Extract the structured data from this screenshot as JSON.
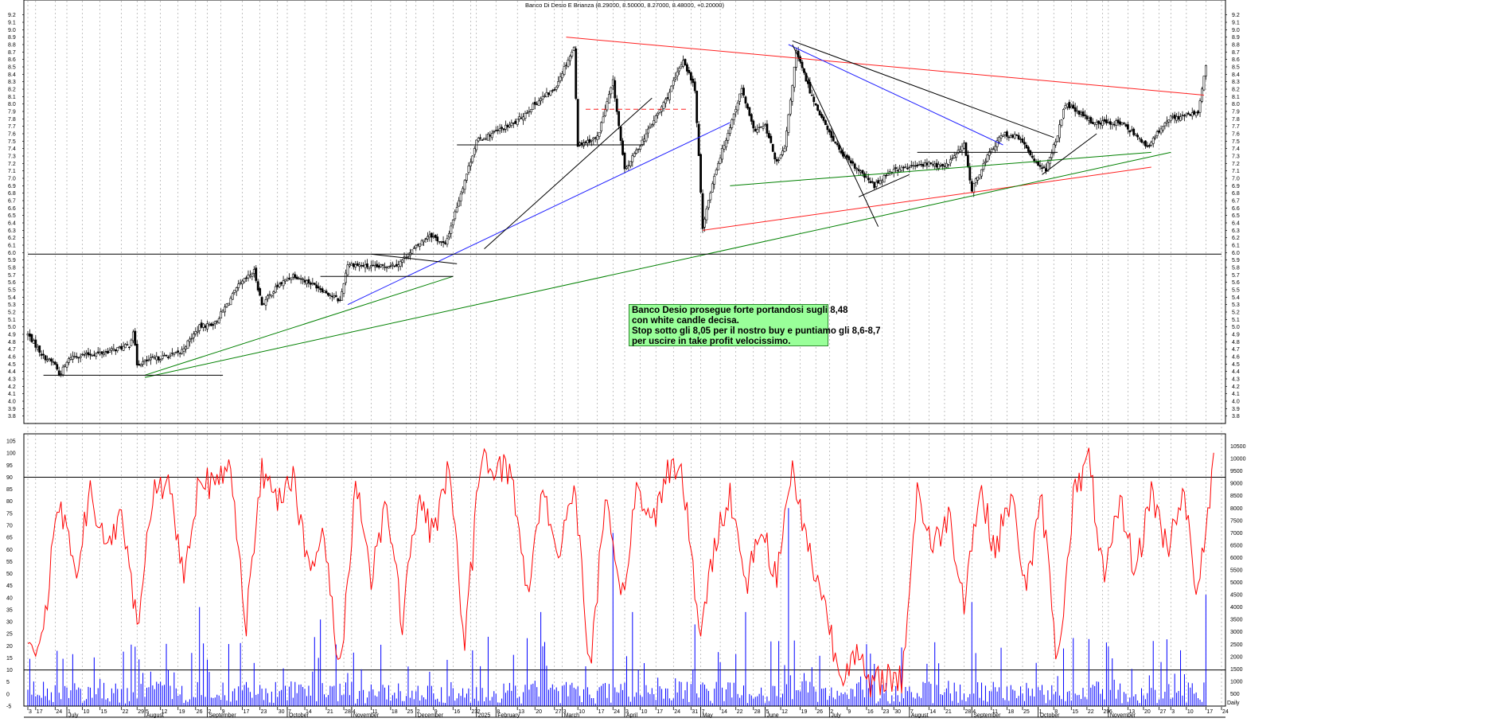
{
  "chart_data": {
    "type": "candlestick",
    "title": "Banco Di Desio E Brianza (8.29000, 8.50000, 8.27000, 8.48000, +0.20000)",
    "price_axis": {
      "ylim": [
        3.7,
        9.25
      ],
      "ticks": [
        "3.8",
        "3.9",
        "4.0",
        "4.1",
        "4.2",
        "4.3",
        "4.4",
        "4.5",
        "4.6",
        "4.7",
        "4.8",
        "4.9",
        "5.0",
        "5.1",
        "5.2",
        "5.3",
        "5.4",
        "5.5",
        "5.6",
        "5.7",
        "5.8",
        "5.9",
        "6.0",
        "6.1",
        "6.2",
        "6.3",
        "6.4",
        "6.5",
        "6.6",
        "6.7",
        "6.8",
        "6.9",
        "7.0",
        "7.1",
        "7.2",
        "7.3",
        "7.4",
        "7.5",
        "7.6",
        "7.7",
        "7.8",
        "7.9",
        "8.0",
        "8.1",
        "8.2",
        "8.3",
        "8.4",
        "8.5",
        "8.6",
        "8.7",
        "8.8",
        "8.9",
        "9.0",
        "9.1",
        "9.2"
      ]
    },
    "price_keypoints": [
      [
        0,
        4.9
      ],
      [
        8,
        4.6
      ],
      [
        14,
        4.5
      ],
      [
        16,
        4.35
      ],
      [
        22,
        4.6
      ],
      [
        38,
        4.65
      ],
      [
        52,
        4.75
      ],
      [
        54,
        4.95
      ],
      [
        56,
        4.5
      ],
      [
        62,
        4.55
      ],
      [
        78,
        4.65
      ],
      [
        88,
        5.0
      ],
      [
        96,
        5.05
      ],
      [
        108,
        5.55
      ],
      [
        116,
        5.75
      ],
      [
        120,
        5.3
      ],
      [
        128,
        5.55
      ],
      [
        136,
        5.7
      ],
      [
        148,
        5.55
      ],
      [
        160,
        5.35
      ],
      [
        164,
        5.85
      ],
      [
        178,
        5.8
      ],
      [
        190,
        5.85
      ],
      [
        196,
        6.0
      ],
      [
        206,
        6.25
      ],
      [
        214,
        6.1
      ],
      [
        222,
        6.8
      ],
      [
        230,
        7.5
      ],
      [
        238,
        7.6
      ],
      [
        250,
        7.75
      ],
      [
        262,
        8.05
      ],
      [
        270,
        8.2
      ],
      [
        276,
        8.55
      ],
      [
        280,
        8.75
      ],
      [
        282,
        7.45
      ],
      [
        292,
        7.55
      ],
      [
        300,
        8.3
      ],
      [
        306,
        7.1
      ],
      [
        316,
        7.55
      ],
      [
        328,
        8.1
      ],
      [
        336,
        8.6
      ],
      [
        342,
        8.2
      ],
      [
        346,
        6.35
      ],
      [
        352,
        7.05
      ],
      [
        360,
        7.7
      ],
      [
        366,
        8.2
      ],
      [
        372,
        7.65
      ],
      [
        378,
        7.7
      ],
      [
        384,
        7.2
      ],
      [
        388,
        7.4
      ],
      [
        394,
        8.7
      ],
      [
        402,
        8.1
      ],
      [
        410,
        7.65
      ],
      [
        418,
        7.3
      ],
      [
        426,
        7.1
      ],
      [
        434,
        6.9
      ],
      [
        442,
        7.1
      ],
      [
        452,
        7.15
      ],
      [
        462,
        7.2
      ],
      [
        470,
        7.15
      ],
      [
        480,
        7.45
      ],
      [
        484,
        6.85
      ],
      [
        492,
        7.3
      ],
      [
        500,
        7.6
      ],
      [
        508,
        7.55
      ],
      [
        516,
        7.25
      ],
      [
        522,
        7.1
      ],
      [
        528,
        7.6
      ],
      [
        532,
        8.0
      ],
      [
        546,
        7.75
      ],
      [
        560,
        7.75
      ],
      [
        570,
        7.55
      ],
      [
        574,
        7.4
      ],
      [
        584,
        7.8
      ],
      [
        596,
        7.85
      ],
      [
        600,
        7.9
      ],
      [
        604,
        8.5
      ]
    ],
    "volume_axis": {
      "ylim": [
        0,
        11000
      ],
      "ticks": [
        "500",
        "1000",
        "1500",
        "2000",
        "2500",
        "3000",
        "3500",
        "4000",
        "4500",
        "5000",
        "5500",
        "6000",
        "6500",
        "7000",
        "7500",
        "8000",
        "8500",
        "9000",
        "9500",
        "10000",
        "10500"
      ]
    },
    "oscillator_axis": {
      "ylim": [
        -5,
        108
      ],
      "ticks": [
        "-5",
        "0",
        "5",
        "10",
        "15",
        "20",
        "25",
        "30",
        "35",
        "40",
        "45",
        "50",
        "55",
        "60",
        "65",
        "70",
        "75",
        "80",
        "85",
        "90",
        "95",
        "100",
        "105"
      ],
      "levels": [
        10,
        90
      ]
    },
    "oscillator_keypoints": [
      [
        0,
        15
      ],
      [
        8,
        28
      ],
      [
        16,
        80
      ],
      [
        24,
        50
      ],
      [
        32,
        82
      ],
      [
        40,
        62
      ],
      [
        48,
        72
      ],
      [
        56,
        30
      ],
      [
        64,
        82
      ],
      [
        72,
        90
      ],
      [
        80,
        48
      ],
      [
        88,
        92
      ],
      [
        96,
        85
      ],
      [
        104,
        95
      ],
      [
        112,
        30
      ],
      [
        120,
        92
      ],
      [
        128,
        82
      ],
      [
        136,
        92
      ],
      [
        144,
        50
      ],
      [
        152,
        65
      ],
      [
        160,
        8
      ],
      [
        168,
        88
      ],
      [
        176,
        50
      ],
      [
        184,
        80
      ],
      [
        192,
        30
      ],
      [
        200,
        80
      ],
      [
        208,
        65
      ],
      [
        216,
        98
      ],
      [
        224,
        18
      ],
      [
        232,
        98
      ],
      [
        240,
        95
      ],
      [
        248,
        92
      ],
      [
        256,
        40
      ],
      [
        264,
        88
      ],
      [
        272,
        55
      ],
      [
        280,
        90
      ],
      [
        288,
        10
      ],
      [
        296,
        80
      ],
      [
        304,
        35
      ],
      [
        312,
        85
      ],
      [
        320,
        70
      ],
      [
        328,
        95
      ],
      [
        336,
        90
      ],
      [
        344,
        25
      ],
      [
        352,
        60
      ],
      [
        360,
        85
      ],
      [
        368,
        45
      ],
      [
        376,
        70
      ],
      [
        384,
        48
      ],
      [
        392,
        95
      ],
      [
        400,
        60
      ],
      [
        408,
        40
      ],
      [
        416,
        8
      ],
      [
        424,
        18
      ],
      [
        432,
        2
      ],
      [
        440,
        8
      ],
      [
        448,
        5
      ],
      [
        456,
        85
      ],
      [
        464,
        60
      ],
      [
        472,
        75
      ],
      [
        480,
        40
      ],
      [
        488,
        85
      ],
      [
        496,
        60
      ],
      [
        504,
        82
      ],
      [
        512,
        45
      ],
      [
        520,
        80
      ],
      [
        528,
        12
      ],
      [
        536,
        82
      ],
      [
        544,
        97
      ],
      [
        552,
        45
      ],
      [
        560,
        80
      ],
      [
        568,
        50
      ],
      [
        576,
        85
      ],
      [
        584,
        60
      ],
      [
        592,
        85
      ],
      [
        600,
        40
      ],
      [
        608,
        96
      ]
    ],
    "volume_spikes": [
      [
        88,
        4000
      ],
      [
        150,
        3500
      ],
      [
        236,
        2800
      ],
      [
        263,
        3800
      ],
      [
        300,
        7000
      ],
      [
        310,
        3800
      ],
      [
        342,
        3300
      ],
      [
        368,
        3800
      ],
      [
        390,
        8000
      ],
      [
        430,
        2500
      ],
      [
        484,
        4200
      ],
      [
        566,
        1500
      ],
      [
        604,
        4500
      ],
      [
        606,
        2500
      ]
    ],
    "x_axis": {
      "day_ticks": [
        [
          0,
          "3"
        ],
        [
          4,
          "17"
        ],
        [
          14,
          "24"
        ],
        [
          20,
          "1"
        ],
        [
          28,
          "10"
        ],
        [
          37,
          "15"
        ],
        [
          48,
          "22"
        ],
        [
          56,
          "29"
        ],
        [
          60,
          "5"
        ],
        [
          68,
          "12"
        ],
        [
          77,
          "19"
        ],
        [
          86,
          "26"
        ],
        [
          92,
          "2"
        ],
        [
          99,
          "9"
        ],
        [
          110,
          "17"
        ],
        [
          119,
          "23"
        ],
        [
          128,
          "30"
        ],
        [
          133,
          "7"
        ],
        [
          142,
          "14"
        ],
        [
          153,
          "21"
        ],
        [
          162,
          "28"
        ],
        [
          166,
          "4"
        ],
        [
          176,
          "11"
        ],
        [
          186,
          "18"
        ],
        [
          194,
          "25"
        ],
        [
          199,
          "2"
        ],
        [
          208,
          "9"
        ],
        [
          218,
          "16"
        ],
        [
          227,
          "23"
        ],
        [
          230,
          "2"
        ],
        [
          240,
          "8"
        ],
        [
          251,
          "13"
        ],
        [
          260,
          "20"
        ],
        [
          270,
          "27"
        ],
        [
          274,
          "3"
        ],
        [
          282,
          "10"
        ],
        [
          292,
          "17"
        ],
        [
          300,
          "24"
        ],
        [
          306,
          "3"
        ],
        [
          314,
          "10"
        ],
        [
          322,
          "17"
        ],
        [
          331,
          "24"
        ],
        [
          340,
          "31"
        ],
        [
          345,
          "7"
        ],
        [
          355,
          "14"
        ],
        [
          363,
          "22"
        ],
        [
          372,
          "28"
        ],
        [
          378,
          "5"
        ],
        [
          386,
          "12"
        ],
        [
          396,
          "19"
        ],
        [
          404,
          "26"
        ],
        [
          411,
          "2"
        ],
        [
          420,
          "9"
        ],
        [
          430,
          "16"
        ],
        [
          438,
          "23"
        ],
        [
          444,
          "30"
        ],
        [
          452,
          "7"
        ],
        [
          462,
          "14"
        ],
        [
          470,
          "21"
        ],
        [
          480,
          "28"
        ],
        [
          484,
          "4"
        ],
        [
          494,
          "11"
        ],
        [
          502,
          "18"
        ],
        [
          510,
          "25"
        ],
        [
          518,
          "1"
        ],
        [
          526,
          "8"
        ],
        [
          535,
          "15"
        ],
        [
          543,
          "22"
        ],
        [
          551,
          "29"
        ],
        [
          554,
          "6"
        ],
        [
          564,
          "13"
        ],
        [
          572,
          "20"
        ],
        [
          580,
          "27"
        ],
        [
          586,
          "3"
        ],
        [
          594,
          "10"
        ],
        [
          604,
          "17"
        ],
        [
          612,
          "24"
        ]
      ],
      "month_labels": [
        [
          20,
          "July"
        ],
        [
          60,
          "August"
        ],
        [
          92,
          "September"
        ],
        [
          133,
          "October"
        ],
        [
          166,
          "November"
        ],
        [
          199,
          "December"
        ],
        [
          230,
          "2025"
        ],
        [
          240,
          "February"
        ],
        [
          274,
          "March"
        ],
        [
          306,
          "April"
        ],
        [
          345,
          "May"
        ],
        [
          378,
          "June"
        ],
        [
          411,
          "July"
        ],
        [
          452,
          "August"
        ],
        [
          484,
          "September"
        ],
        [
          518,
          "October"
        ],
        [
          554,
          "November"
        ]
      ],
      "unit_label": "Daily"
    },
    "annotation_lines": [
      {
        "color": "#ff2020",
        "points": [
          [
            276,
            8.9
          ],
          [
            603,
            8.12
          ]
        ]
      },
      {
        "color": "#ff2020",
        "points": [
          [
            346,
            6.3
          ],
          [
            576,
            7.15
          ]
        ]
      },
      {
        "color": "#ff2020",
        "dashed": true,
        "points": [
          [
            286,
            7.93
          ],
          [
            338,
            7.93
          ]
        ]
      },
      {
        "color": "#2020ff",
        "points": [
          [
            164,
            5.3
          ],
          [
            360,
            7.75
          ]
        ]
      },
      {
        "color": "#2020ff",
        "points": [
          [
            390,
            8.8
          ],
          [
            500,
            7.45
          ]
        ]
      },
      {
        "color": "#008000",
        "points": [
          [
            60,
            4.35
          ],
          [
            218,
            5.68
          ]
        ]
      },
      {
        "color": "#008000",
        "points": [
          [
            60,
            4.32
          ],
          [
            586,
            7.35
          ]
        ]
      },
      {
        "color": "#008000",
        "points": [
          [
            360,
            6.9
          ],
          [
            576,
            7.35
          ]
        ]
      },
      {
        "color": "#000000",
        "points": [
          [
            8,
            4.35
          ],
          [
            100,
            4.35
          ]
        ]
      },
      {
        "color": "#000000",
        "points": [
          [
            150,
            5.68
          ],
          [
            218,
            5.68
          ]
        ]
      },
      {
        "color": "#000000",
        "points": [
          [
            220,
            7.45
          ],
          [
            316,
            7.45
          ]
        ]
      },
      {
        "color": "#000000",
        "points": [
          [
            456,
            7.35
          ],
          [
            528,
            7.35
          ]
        ]
      },
      {
        "color": "#000000",
        "points": [
          [
            176,
            5.98
          ],
          [
            220,
            5.85
          ]
        ]
      },
      {
        "color": "#000000",
        "points": [
          [
            234,
            6.05
          ],
          [
            320,
            8.08
          ]
        ]
      },
      {
        "color": "#000000",
        "points": [
          [
            392,
            8.8
          ],
          [
            436,
            6.35
          ]
        ]
      },
      {
        "color": "#000000",
        "points": [
          [
            392,
            8.85
          ],
          [
            526,
            7.55
          ]
        ]
      },
      {
        "color": "#000000",
        "points": [
          [
            426,
            6.75
          ],
          [
            452,
            7.05
          ]
        ]
      },
      {
        "color": "#000000",
        "points": [
          [
            520,
            7.05
          ],
          [
            548,
            7.6
          ]
        ]
      },
      {
        "color": "#000000",
        "points": [
          [
            0,
            5.98
          ],
          [
            612,
            5.98
          ]
        ]
      }
    ],
    "comment": [
      "Banco Desio prosegue forte portandosi sugli 8,48",
      "con white candle decisa.",
      "Stop sotto gli 8,05 per il nostro buy e puntiamo gli 8,6-8,7",
      "per uscire in take profit velocissimo."
    ],
    "colors": {
      "up_candle": "#ffffff",
      "down_candle": "#000000",
      "oscillator": "#ff0000",
      "volume": "#0000ff",
      "comment_bg": "#99ff99"
    }
  }
}
